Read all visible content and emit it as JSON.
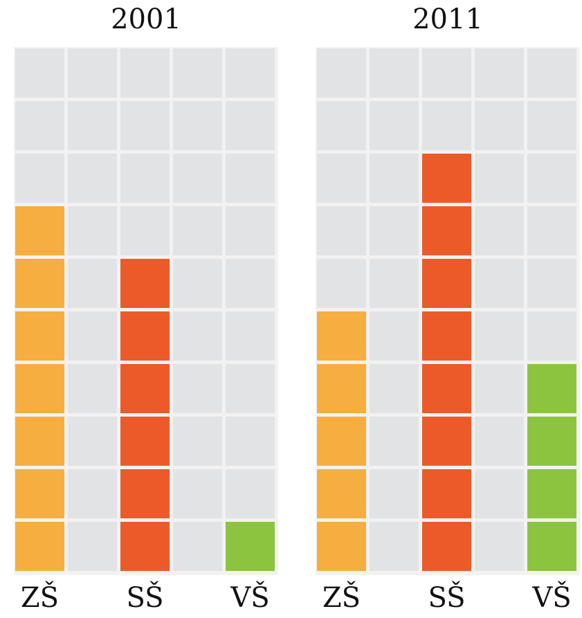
{
  "chart_data": [
    {
      "type": "waffle",
      "title": "2001",
      "categories": [
        "ZŠ",
        "",
        "SŠ",
        "",
        "VŠ"
      ],
      "values": [
        7,
        0,
        6,
        0,
        1
      ],
      "ylim": [
        0,
        10
      ],
      "colors": [
        "#f6ae40",
        "#e0e0e0",
        "#ed5a2a",
        "#e0e0e0",
        "#8cc43f"
      ],
      "empty_color": "#e2e3e5"
    },
    {
      "type": "waffle",
      "title": "2011",
      "categories": [
        "ZŠ",
        "",
        "SŠ",
        "",
        "VŠ"
      ],
      "values": [
        5,
        0,
        8,
        0,
        4
      ],
      "ylim": [
        0,
        10
      ],
      "colors": [
        "#f6ae40",
        "#e0e0e0",
        "#ed5a2a",
        "#e0e0e0",
        "#8cc43f"
      ],
      "empty_color": "#e2e3e5"
    }
  ]
}
